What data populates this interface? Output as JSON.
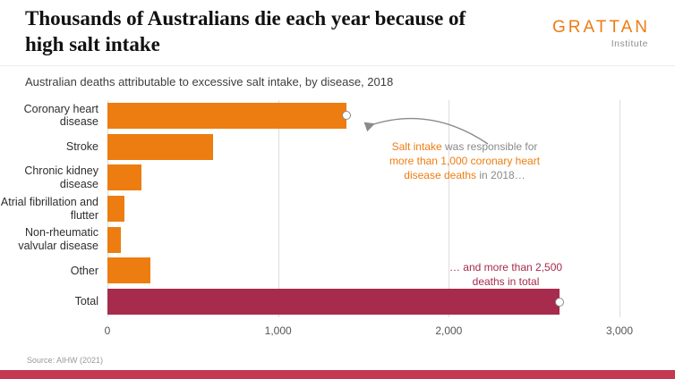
{
  "page": {
    "title_line1": "Thousands of Australians die each year because of",
    "title_line2": "high salt intake",
    "subtitle": "Australian deaths attributable to excessive salt intake, by disease, 2018",
    "source": "Source: AIHW (2021)"
  },
  "logo": {
    "name": "GRATTAN",
    "subname": "Institute"
  },
  "colors": {
    "orange": "#ED7D11",
    "maroon": "#A62B4D",
    "footer_strip": "#C43A52",
    "annotation_gray": "#8a8a8a",
    "gridline": "#dcdcdc"
  },
  "annotations": {
    "coronary": {
      "seg1": "Salt intake",
      "seg2": " was responsible for ",
      "seg3": "more than 1,000 coronary heart disease deaths",
      "seg4": " in 2018…"
    },
    "total": "… and more than 2,500 deaths in total"
  },
  "chart_data": {
    "type": "bar",
    "orientation": "horizontal",
    "title": "Australian deaths attributable to excessive salt intake, by disease, 2018",
    "categories": [
      "Coronary heart disease",
      "Stroke",
      "Chronic kidney disease",
      "Atrial fibrillation and flutter",
      "Non-rheumatic valvular disease",
      "Other",
      "Total"
    ],
    "values": [
      1400,
      620,
      200,
      100,
      80,
      250,
      2650
    ],
    "bar_colors": [
      "#ED7D11",
      "#ED7D11",
      "#ED7D11",
      "#ED7D11",
      "#ED7D11",
      "#ED7D11",
      "#A62B4D"
    ],
    "markers": [
      true,
      false,
      false,
      false,
      false,
      false,
      true
    ],
    "xlim": [
      0,
      3000
    ],
    "x_ticks": [
      0,
      1000,
      2000,
      3000
    ],
    "x_tick_labels": [
      "0",
      "1,000",
      "2,000",
      "3,000"
    ],
    "grid": "vertical",
    "legend": "none"
  }
}
